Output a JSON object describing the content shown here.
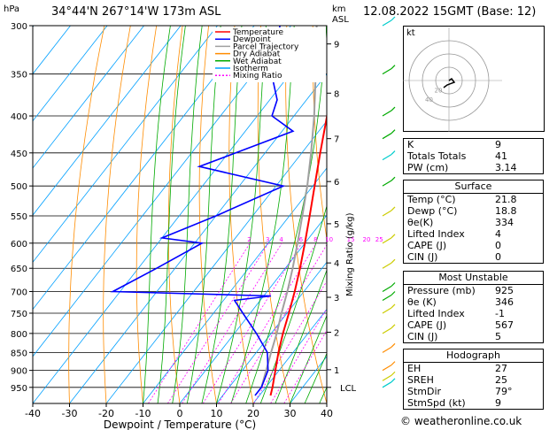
{
  "header": {
    "location": "34°44'N  267°14'W  173m  ASL",
    "datetime": "12.08.2022  15GMT  (Base: 12)",
    "hpa_label": "hPa",
    "km_label": "km",
    "asl_label": "ASL"
  },
  "chart_data": {
    "type": "skew-t",
    "xlabel": "Dewpoint / Temperature (°C)",
    "ylabel_right": "Mixing Ratio (g/kg)",
    "x_ticks": [
      "-40",
      "-30",
      "-20",
      "-10",
      "0",
      "10",
      "20",
      "30",
      "40"
    ],
    "x_range": [
      -40,
      40
    ],
    "pressure_levels": [
      300,
      350,
      400,
      450,
      500,
      550,
      600,
      650,
      700,
      750,
      800,
      850,
      900,
      950
    ],
    "pressure_range": [
      300,
      1000
    ],
    "km_ticks": [
      {
        "label": "9",
        "p": 318
      },
      {
        "label": "8",
        "p": 372
      },
      {
        "label": "7",
        "p": 430
      },
      {
        "label": "6",
        "p": 493
      },
      {
        "label": "5",
        "p": 564
      },
      {
        "label": "4",
        "p": 639
      },
      {
        "label": "3",
        "p": 713
      },
      {
        "label": "2",
        "p": 797
      },
      {
        "label": "1",
        "p": 898
      },
      {
        "label": "LCL",
        "p": 950
      }
    ],
    "mixing_ratio_labels": [
      "2",
      "3",
      "4",
      "6",
      "8",
      "10",
      "15",
      "20",
      "25"
    ],
    "legend": [
      "Temperature",
      "Dewpoint",
      "Parcel Trajectory",
      "Dry Adiabat",
      "Wet Adiabat",
      "Isotherm",
      "Mixing Ratio"
    ],
    "colors": {
      "temperature": "#ff0000",
      "dewpoint": "#0000ff",
      "parcel": "#a0a0a0",
      "dry_adiabat": "#ff8c00",
      "wet_adiabat": "#00aa00",
      "isotherm": "#00a0ff",
      "mixing_ratio": "#ff00ff"
    },
    "temperature": [
      {
        "p": 975,
        "t": 23
      },
      {
        "p": 950,
        "t": 21.8
      },
      {
        "p": 900,
        "t": 19
      },
      {
        "p": 850,
        "t": 16
      },
      {
        "p": 800,
        "t": 13.2
      },
      {
        "p": 750,
        "t": 10.5
      },
      {
        "p": 700,
        "t": 7.5
      },
      {
        "p": 650,
        "t": 4
      },
      {
        "p": 600,
        "t": 0
      },
      {
        "p": 550,
        "t": -4.5
      },
      {
        "p": 500,
        "t": -9.5
      },
      {
        "p": 450,
        "t": -15
      },
      {
        "p": 400,
        "t": -21
      },
      {
        "p": 350,
        "t": -28.5
      },
      {
        "p": 300,
        "t": -37.5
      }
    ],
    "dewpoint": [
      {
        "p": 975,
        "t": 18.8
      },
      {
        "p": 950,
        "t": 18.8
      },
      {
        "p": 900,
        "t": 17
      },
      {
        "p": 850,
        "t": 13
      },
      {
        "p": 800,
        "t": 6
      },
      {
        "p": 750,
        "t": -2
      },
      {
        "p": 720,
        "t": -7
      },
      {
        "p": 710,
        "t": 2
      },
      {
        "p": 700,
        "t": -42
      },
      {
        "p": 650,
        "t": -35
      },
      {
        "p": 600,
        "t": -28
      },
      {
        "p": 590,
        "t": -40
      },
      {
        "p": 550,
        "t": -30
      },
      {
        "p": 500,
        "t": -18
      },
      {
        "p": 470,
        "t": -45
      },
      {
        "p": 450,
        "t": -38
      },
      {
        "p": 420,
        "t": -27
      },
      {
        "p": 400,
        "t": -36
      },
      {
        "p": 380,
        "t": -38
      },
      {
        "p": 350,
        "t": -45
      },
      {
        "p": 300,
        "t": -53
      }
    ],
    "parcel": [
      {
        "p": 950,
        "t": 18.8
      },
      {
        "p": 900,
        "t": 16.5
      },
      {
        "p": 850,
        "t": 14
      },
      {
        "p": 800,
        "t": 11.5
      },
      {
        "p": 750,
        "t": 8.5
      },
      {
        "p": 700,
        "t": 5.5
      },
      {
        "p": 650,
        "t": 2
      },
      {
        "p": 600,
        "t": -2
      },
      {
        "p": 550,
        "t": -6.5
      },
      {
        "p": 500,
        "t": -11.5
      },
      {
        "p": 450,
        "t": -17.5
      },
      {
        "p": 400,
        "t": -24.5
      },
      {
        "p": 350,
        "t": -33
      },
      {
        "p": 300,
        "t": -43
      }
    ]
  },
  "hodograph": {
    "label": "kt",
    "ring_labels": [
      "20",
      "40"
    ]
  },
  "indices": {
    "rows": [
      {
        "label": "K",
        "value": "9"
      },
      {
        "label": "Totals Totals",
        "value": "41"
      },
      {
        "label": "PW (cm)",
        "value": "3.14"
      }
    ]
  },
  "surface": {
    "title": "Surface",
    "rows": [
      {
        "label": "Temp (°C)",
        "value": "21.8"
      },
      {
        "label": "Dewp (°C)",
        "value": "18.8"
      },
      {
        "label": "θe(K)",
        "value": "334"
      },
      {
        "label": "Lifted Index",
        "value": "4"
      },
      {
        "label": "CAPE (J)",
        "value": "0"
      },
      {
        "label": "CIN (J)",
        "value": "0"
      }
    ]
  },
  "most_unstable": {
    "title": "Most Unstable",
    "rows": [
      {
        "label": "Pressure (mb)",
        "value": "925"
      },
      {
        "label": "θe (K)",
        "value": "346"
      },
      {
        "label": "Lifted Index",
        "value": "-1"
      },
      {
        "label": "CAPE (J)",
        "value": "567"
      },
      {
        "label": "CIN (J)",
        "value": "5"
      }
    ]
  },
  "hodograph_table": {
    "title": "Hodograph",
    "rows": [
      {
        "label": "EH",
        "value": "27"
      },
      {
        "label": "SREH",
        "value": "25"
      },
      {
        "label": "StmDir",
        "value": "79°"
      },
      {
        "label": "StmSpd (kt)",
        "value": "9"
      }
    ]
  },
  "footer": "© weatheronline.co.uk"
}
